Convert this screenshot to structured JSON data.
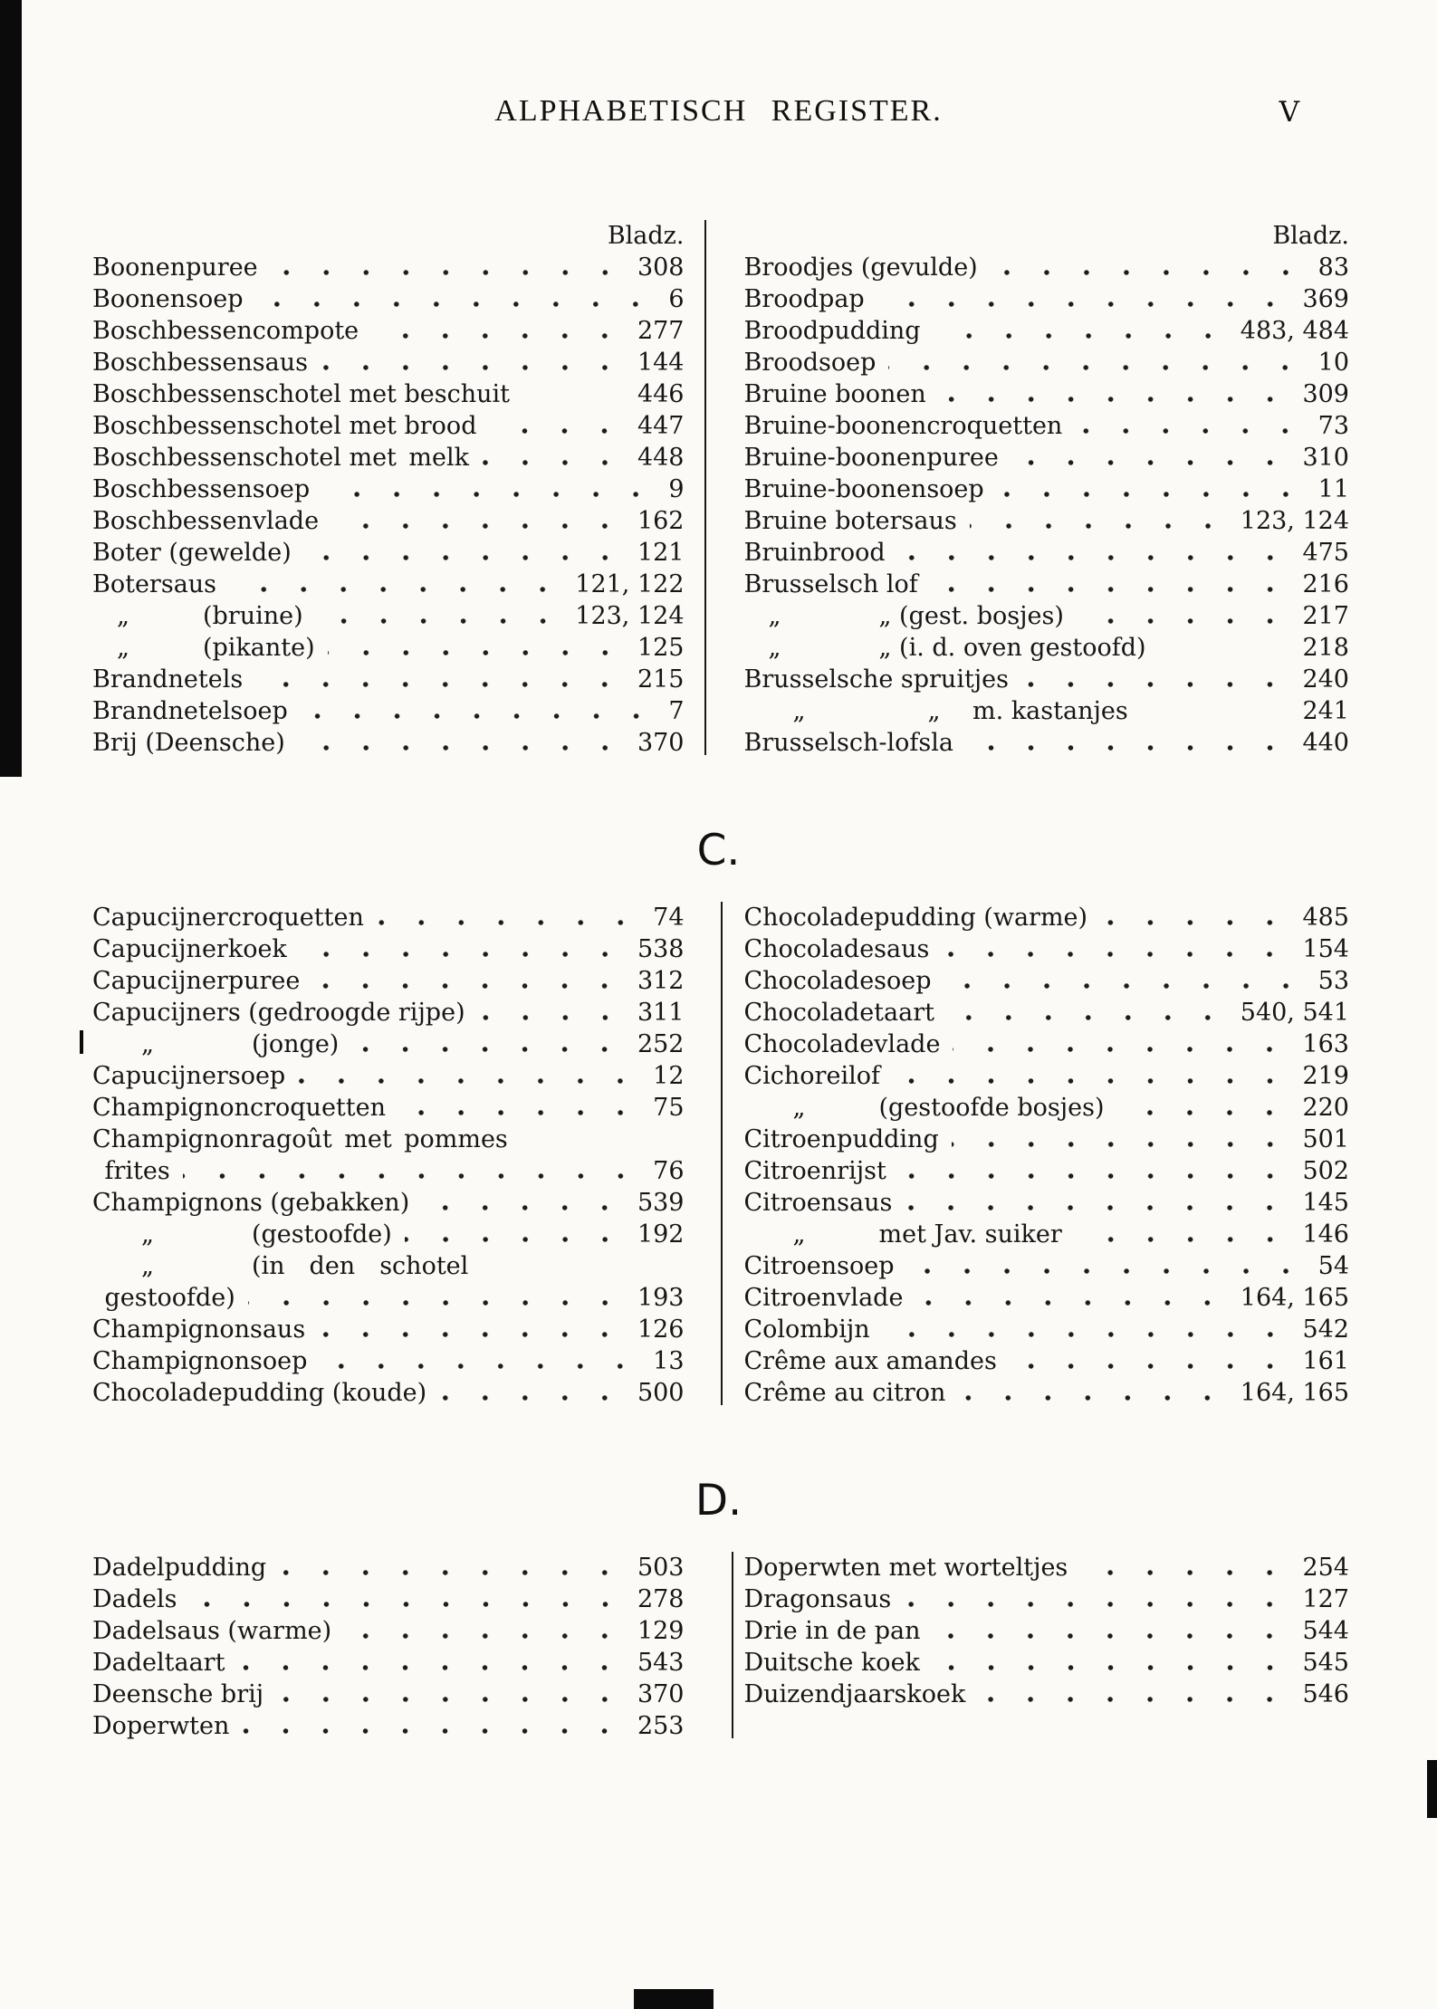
{
  "page": {
    "title": "ALPHABETISCH REGISTER.",
    "page_number": "V",
    "column_header": "Bladz."
  },
  "sections": [
    {
      "letter": "",
      "show_bladz": true,
      "left": [
        {
          "label": "Boonenpuree",
          "dots": true,
          "pages": "308"
        },
        {
          "label": "Boonensoep",
          "dots": true,
          "pages": "6"
        },
        {
          "label": "Boschbessencompote",
          "dots": true,
          "pages": "277"
        },
        {
          "label": "Boschbessensaus",
          "dots": true,
          "pages": "144"
        },
        {
          "label": "Boschbessenschotel met beschuit",
          "dots": false,
          "pages": "446"
        },
        {
          "label": "Boschbessenschotel met brood",
          "dots": true,
          "pages": "447"
        },
        {
          "label": "Boschbessenschotel met melk",
          "dots": true,
          "pages": "448"
        },
        {
          "label": "Boschbessensoep",
          "dots": true,
          "pages": "9"
        },
        {
          "label": "Boschbessenvlade",
          "dots": true,
          "pages": "162"
        },
        {
          "label": "Boter (gewelde)",
          "dots": true,
          "pages": "121"
        },
        {
          "label": "Botersaus",
          "dots": true,
          "pages": "121, 122"
        },
        {
          "label": " „   (bruine)",
          "dots": true,
          "pages": "123, 124"
        },
        {
          "label": " „   (pikante)",
          "dots": true,
          "pages": "125"
        },
        {
          "label": "Brandnetels",
          "dots": true,
          "pages": "215"
        },
        {
          "label": "Brandnetelsoep",
          "dots": true,
          "pages": "7"
        },
        {
          "label": "Brij (Deensche)",
          "dots": true,
          "pages": "370"
        }
      ],
      "right": [
        {
          "label": "Broodjes (gevulde)",
          "dots": true,
          "pages": "83"
        },
        {
          "label": "Broodpap",
          "dots": true,
          "pages": "369"
        },
        {
          "label": "Broodpudding",
          "dots": true,
          "pages": "483, 484"
        },
        {
          "label": "Broodsoep",
          "dots": true,
          "pages": "10"
        },
        {
          "label": "Bruine boonen",
          "dots": true,
          "pages": "309"
        },
        {
          "label": "Bruine-boonencroquetten",
          "dots": true,
          "pages": "73"
        },
        {
          "label": "Bruine-boonenpuree",
          "dots": true,
          "pages": "310"
        },
        {
          "label": "Bruine-boonensoep",
          "dots": true,
          "pages": "11"
        },
        {
          "label": "Bruine botersaus",
          "dots": true,
          "pages": "123, 124"
        },
        {
          "label": "Bruinbrood",
          "dots": true,
          "pages": "475"
        },
        {
          "label": "Brusselsch lof",
          "dots": true,
          "pages": "216"
        },
        {
          "label": " „    „ (gest. bosjes)",
          "dots": true,
          "pages": "217"
        },
        {
          "label": " „    „ (i. d. oven gestoofd)",
          "dots": false,
          "pages": "218"
        },
        {
          "label": "Brusselsche spruitjes",
          "dots": true,
          "pages": "240"
        },
        {
          "label": "  „     „  m. kastanjes",
          "dots": false,
          "pages": "241"
        },
        {
          "label": "Brusselsch-lofsla",
          "dots": true,
          "pages": "440"
        }
      ]
    },
    {
      "letter": "C.",
      "show_bladz": false,
      "left": [
        {
          "label": "Capucijnercroquetten",
          "dots": true,
          "pages": "74"
        },
        {
          "label": "Capucijnerkoek",
          "dots": true,
          "pages": "538"
        },
        {
          "label": "Capucijnerpuree",
          "dots": true,
          "pages": "312"
        },
        {
          "label": "Capucijners (gedroogde rijpe)",
          "dots": true,
          "pages": "311"
        },
        {
          "label": "  „    (jonge)",
          "dots": true,
          "pages": "252"
        },
        {
          "label": "Capucijnersoep",
          "dots": true,
          "pages": "12"
        },
        {
          "label": "Champignoncroquetten",
          "dots": true,
          "pages": "75"
        },
        {
          "label": "Champignonragoût met pommes",
          "dots": false,
          "pages": ""
        },
        {
          "label": " frites",
          "dots": true,
          "pages": "76"
        },
        {
          "label": "Champignons (gebakken)",
          "dots": true,
          "pages": "539"
        },
        {
          "label": "  „    (gestoofde)",
          "dots": true,
          "pages": "192"
        },
        {
          "label": "  „    (in  den  schotel",
          "dots": false,
          "pages": ""
        },
        {
          "label": " gestoofde)",
          "dots": true,
          "pages": "193"
        },
        {
          "label": "Champignonsaus",
          "dots": true,
          "pages": "126"
        },
        {
          "label": "Champignonsoep",
          "dots": true,
          "pages": "13"
        },
        {
          "label": "Chocoladepudding (koude)",
          "dots": true,
          "pages": "500"
        }
      ],
      "right": [
        {
          "label": "Chocoladepudding (warme)",
          "dots": true,
          "pages": "485"
        },
        {
          "label": "Chocoladesaus",
          "dots": true,
          "pages": "154"
        },
        {
          "label": "Chocoladesoep",
          "dots": true,
          "pages": "53"
        },
        {
          "label": "Chocoladetaart",
          "dots": true,
          "pages": "540, 541"
        },
        {
          "label": "Chocoladevlade",
          "dots": true,
          "pages": "163"
        },
        {
          "label": "Cichoreilof",
          "dots": true,
          "pages": "219"
        },
        {
          "label": "  „   (gestoofde bosjes)",
          "dots": true,
          "pages": "220"
        },
        {
          "label": "Citroenpudding",
          "dots": true,
          "pages": "501"
        },
        {
          "label": "Citroenrijst",
          "dots": true,
          "pages": "502"
        },
        {
          "label": "Citroensaus",
          "dots": true,
          "pages": "145"
        },
        {
          "label": "  „   met Jav. suiker",
          "dots": true,
          "pages": "146"
        },
        {
          "label": "Citroensoep",
          "dots": true,
          "pages": "54"
        },
        {
          "label": "Citroenvlade",
          "dots": true,
          "pages": "164, 165"
        },
        {
          "label": "Colombijn",
          "dots": true,
          "pages": "542"
        },
        {
          "label": "Crême aux amandes",
          "dots": true,
          "pages": "161"
        },
        {
          "label": "Crême au citron",
          "dots": true,
          "pages": "164, 165"
        }
      ]
    },
    {
      "letter": "D.",
      "show_bladz": false,
      "left": [
        {
          "label": "Dadelpudding",
          "dots": true,
          "pages": "503"
        },
        {
          "label": "Dadels",
          "dots": true,
          "pages": "278"
        },
        {
          "label": "Dadelsaus (warme)",
          "dots": true,
          "pages": "129"
        },
        {
          "label": "Dadeltaart",
          "dots": true,
          "pages": "543"
        },
        {
          "label": "Deensche brij",
          "dots": true,
          "pages": "370"
        },
        {
          "label": "Doperwten",
          "dots": true,
          "pages": "253"
        }
      ],
      "right": [
        {
          "label": "Doperwten met worteltjes",
          "dots": true,
          "pages": "254"
        },
        {
          "label": "Dragonsaus",
          "dots": true,
          "pages": "127"
        },
        {
          "label": "Drie in de pan",
          "dots": true,
          "pages": "544"
        },
        {
          "label": "Duitsche koek",
          "dots": true,
          "pages": "545"
        },
        {
          "label": "Duizendjaarskoek",
          "dots": true,
          "pages": "546"
        }
      ]
    }
  ]
}
